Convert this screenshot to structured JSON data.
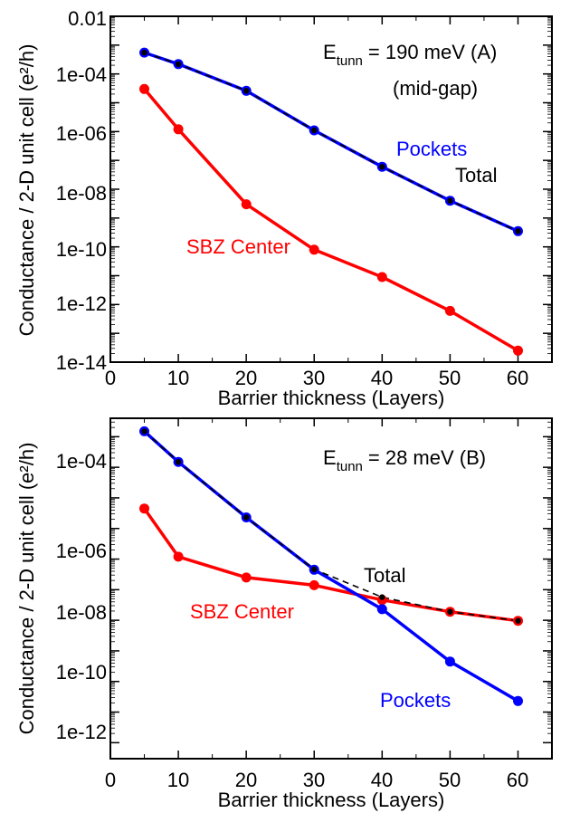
{
  "chart_data": [
    {
      "panel": "A",
      "type": "line",
      "xlabel": "Barrier thickness (Layers)",
      "ylabel": "Conductance / 2-D unit cell (e²/h)",
      "y_scale": "log",
      "xlim": [
        0,
        65
      ],
      "ylim": [
        1e-14,
        0.01
      ],
      "xticks": [
        "0",
        "10",
        "20",
        "30",
        "40",
        "50",
        "60"
      ],
      "yticks": [
        "1e-14",
        "1e-12",
        "1e-10",
        "1e-08",
        "1e-06",
        "1e-04",
        "0.01"
      ],
      "annotation_main": "E",
      "annotation_sub": "tunn",
      "annotation_rest": "= 190 meV  (A)",
      "annotation_line2": "(mid-gap)",
      "series": [
        {
          "name": "Pockets",
          "color": "#0000ff",
          "style": "solid",
          "x": [
            5,
            10,
            20,
            30,
            40,
            50,
            60
          ],
          "y": [
            0.00055,
            0.00022,
            2.6e-05,
            1.1e-06,
            6e-08,
            4e-09,
            3.5e-10
          ]
        },
        {
          "name": "Total",
          "color": "#000000",
          "style": "dashed",
          "x": [
            5,
            10,
            20,
            30,
            40,
            50,
            60
          ],
          "y": [
            0.00055,
            0.00022,
            2.6e-05,
            1.1e-06,
            6e-08,
            4e-09,
            3.5e-10
          ]
        },
        {
          "name": "SBZ Center",
          "color": "#ff0000",
          "style": "solid",
          "x": [
            5,
            10,
            20,
            30,
            40,
            50,
            60
          ],
          "y": [
            3e-05,
            1.2e-06,
            3e-09,
            8e-11,
            9e-12,
            6e-13,
            2.5e-14
          ]
        }
      ]
    },
    {
      "panel": "B",
      "type": "line",
      "xlabel": "Barrier thickness (Layers)",
      "ylabel": "Conductance / 2-D unit cell (e²/h)",
      "y_scale": "log",
      "xlim": [
        0,
        65
      ],
      "ylim": [
        3e-14,
        0.004
      ],
      "xticks": [
        "0",
        "10",
        "20",
        "30",
        "40",
        "50",
        "60"
      ],
      "yticks": [
        "1e-12",
        "1e-10",
        "1e-08",
        "1e-06",
        "1e-04"
      ],
      "annotation_main": "E",
      "annotation_sub": "tunn",
      "annotation_rest": "= 28 meV    (B)",
      "series": [
        {
          "name": "Pockets",
          "color": "#0000ff",
          "style": "solid",
          "x": [
            5,
            10,
            20,
            30,
            40,
            50,
            60
          ],
          "y": [
            0.0015,
            0.00015,
            2.3e-06,
            4.5e-08,
            2.3e-09,
            4.5e-11,
            2.3e-12
          ]
        },
        {
          "name": "Total",
          "color": "#000000",
          "style": "dashed",
          "x": [
            5,
            10,
            20,
            30,
            40,
            50,
            60
          ],
          "y": [
            0.0015,
            0.00015,
            2.3e-06,
            4.6e-08,
            5.7e-09,
            1.9e-09,
            9.6e-10
          ]
        },
        {
          "name": "SBZ Center",
          "color": "#ff0000",
          "style": "solid",
          "x": [
            5,
            10,
            20,
            30,
            40,
            50,
            60
          ],
          "y": [
            4.5e-06,
            1.2e-07,
            2.5e-08,
            1.4e-08,
            4.6e-09,
            1.9e-09,
            9.6e-10
          ]
        }
      ]
    }
  ]
}
